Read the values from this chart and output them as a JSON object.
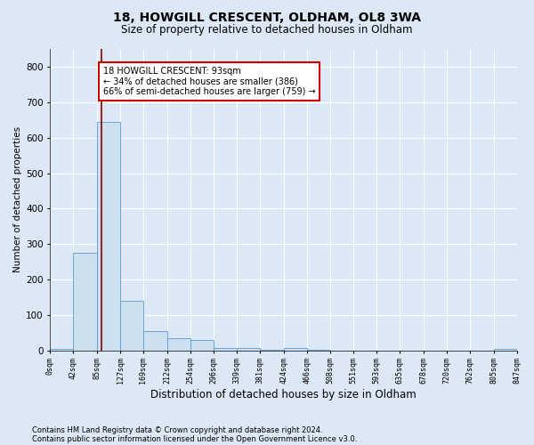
{
  "title_line1": "18, HOWGILL CRESCENT, OLDHAM, OL8 3WA",
  "title_line2": "Size of property relative to detached houses in Oldham",
  "xlabel": "Distribution of detached houses by size in Oldham",
  "ylabel": "Number of detached properties",
  "footnote1": "Contains HM Land Registry data © Crown copyright and database right 2024.",
  "footnote2": "Contains public sector information licensed under the Open Government Licence v3.0.",
  "bin_edges": [
    0,
    42,
    85,
    127,
    169,
    212,
    254,
    296,
    339,
    381,
    424,
    466,
    508,
    551,
    593,
    635,
    678,
    720,
    762,
    805,
    847
  ],
  "bar_heights": [
    5,
    275,
    645,
    140,
    55,
    35,
    30,
    8,
    8,
    2,
    8,
    2,
    0,
    0,
    0,
    0,
    0,
    0,
    0,
    5
  ],
  "bar_color": "#cce0f0",
  "bar_edge_color": "#5b9bd5",
  "property_size": 93,
  "property_line_color": "#8b0000",
  "annotation_text": "18 HOWGILL CRESCENT: 93sqm\n← 34% of detached houses are smaller (386)\n66% of semi-detached houses are larger (759) →",
  "annotation_box_color": "#ffffff",
  "annotation_box_edge": "#cc0000",
  "ylim": [
    0,
    850
  ],
  "yticks": [
    0,
    100,
    200,
    300,
    400,
    500,
    600,
    700,
    800
  ],
  "background_color": "#dce8f5",
  "plot_background": "#dce8f5",
  "grid_color": "#ffffff",
  "title1_fontsize": 10,
  "title2_fontsize": 8.5,
  "ylabel_fontsize": 7.5,
  "xlabel_fontsize": 8.5,
  "ytick_fontsize": 7.5,
  "xtick_fontsize": 6.0,
  "annot_fontsize": 7.0,
  "footnote_fontsize": 6.0
}
